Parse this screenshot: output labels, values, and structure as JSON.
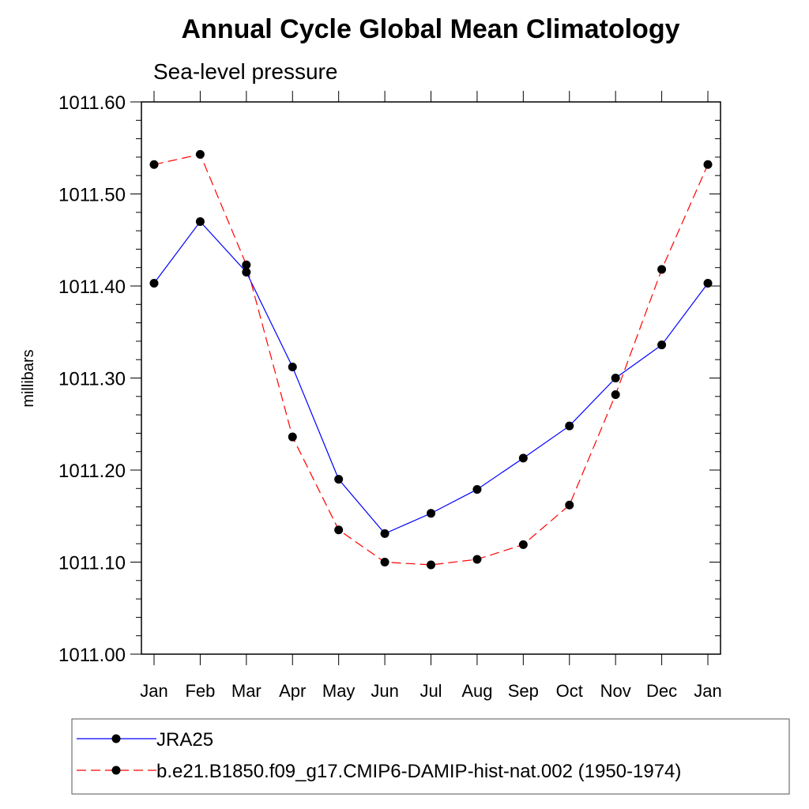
{
  "chart_data": {
    "type": "line",
    "title": "Annual Cycle Global Mean Climatology",
    "subtitle": "Sea-level pressure",
    "xlabel": "",
    "ylabel": "millibars",
    "categories": [
      "Jan",
      "Feb",
      "Mar",
      "Apr",
      "May",
      "Jun",
      "Jul",
      "Aug",
      "Sep",
      "Oct",
      "Nov",
      "Dec",
      "Jan"
    ],
    "ylim": [
      1011.0,
      1011.6
    ],
    "yticks": [
      1011.0,
      1011.1,
      1011.2,
      1011.3,
      1011.4,
      1011.5,
      1011.6
    ],
    "ytick_labels": [
      "1011.00",
      "1011.10",
      "1011.20",
      "1011.30",
      "1011.40",
      "1011.50",
      "1011.60"
    ],
    "grid": false,
    "legend_position": "bottom",
    "series": [
      {
        "name": "JRA25",
        "color": "#0000ff",
        "dash": "solid",
        "marker": "filled-circle",
        "values": [
          1011.403,
          1011.47,
          1011.415,
          1011.312,
          1011.19,
          1011.131,
          1011.153,
          1011.179,
          1011.213,
          1011.248,
          1011.3,
          1011.336,
          1011.403
        ]
      },
      {
        "name": "b.e21.B1850.f09_g17.CMIP6-DAMIP-hist-nat.002 (1950-1974)",
        "color": "#ff0000",
        "dash": "dashed",
        "marker": "filled-circle",
        "values": [
          1011.532,
          1011.543,
          1011.423,
          1011.236,
          1011.135,
          1011.1,
          1011.097,
          1011.103,
          1011.119,
          1011.162,
          1011.282,
          1011.418,
          1011.532
        ]
      }
    ]
  }
}
